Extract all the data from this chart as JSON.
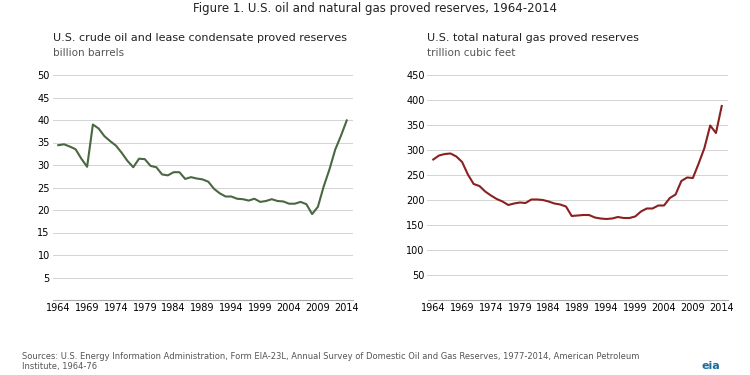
{
  "title": "Figure 1. U.S. oil and natural gas proved reserves, 1964-2014",
  "left_subtitle": "U.S. crude oil and lease condensate proved reserves",
  "left_ylabel": "billion barrels",
  "right_subtitle": "U.S. total natural gas proved reserves",
  "right_ylabel": "trillion cubic feet",
  "source_text": "Sources: U.S. Energy Information Administration, Form EIA-23L, Annual Survey of Domestic Oil and Gas Reserves, 1977-2014, American Petroleum\nInstitute, 1964-76",
  "oil_years": [
    1964,
    1965,
    1966,
    1967,
    1968,
    1969,
    1970,
    1971,
    1972,
    1973,
    1974,
    1975,
    1976,
    1977,
    1978,
    1979,
    1980,
    1981,
    1982,
    1983,
    1984,
    1985,
    1986,
    1987,
    1988,
    1989,
    1990,
    1991,
    1992,
    1993,
    1994,
    1995,
    1996,
    1997,
    1998,
    1999,
    2000,
    2001,
    2002,
    2003,
    2004,
    2005,
    2006,
    2007,
    2008,
    2009,
    2010,
    2011,
    2012,
    2013,
    2014
  ],
  "oil_values": [
    34.4,
    34.6,
    34.1,
    33.5,
    31.4,
    29.6,
    39.0,
    38.1,
    36.4,
    35.3,
    34.3,
    32.7,
    30.9,
    29.5,
    31.4,
    31.3,
    29.8,
    29.5,
    27.9,
    27.7,
    28.4,
    28.4,
    26.9,
    27.3,
    27.0,
    26.8,
    26.3,
    24.7,
    23.7,
    23.0,
    23.0,
    22.5,
    22.4,
    22.1,
    22.5,
    21.8,
    22.0,
    22.4,
    22.0,
    21.9,
    21.4,
    21.4,
    21.8,
    21.3,
    19.1,
    20.7,
    25.2,
    29.0,
    33.4,
    36.5,
    39.9
  ],
  "gas_years": [
    1964,
    1965,
    1966,
    1967,
    1968,
    1969,
    1970,
    1971,
    1972,
    1973,
    1974,
    1975,
    1976,
    1977,
    1978,
    1979,
    1980,
    1981,
    1982,
    1983,
    1984,
    1985,
    1986,
    1987,
    1988,
    1989,
    1990,
    1991,
    1992,
    1993,
    1994,
    1995,
    1996,
    1997,
    1998,
    1999,
    2000,
    2001,
    2002,
    2003,
    2004,
    2005,
    2006,
    2007,
    2008,
    2009,
    2010,
    2011,
    2012,
    2013,
    2014
  ],
  "gas_values": [
    281,
    289,
    292,
    293,
    287,
    276,
    251,
    232,
    228,
    217,
    209,
    202,
    197,
    190,
    193,
    195,
    194,
    201,
    201,
    200,
    197,
    193,
    191,
    187,
    168,
    169,
    170,
    170,
    165,
    163,
    162,
    163,
    166,
    164,
    164,
    167,
    177,
    183,
    183,
    189,
    189,
    204,
    211,
    238,
    245,
    244,
    273,
    304,
    349,
    334,
    388
  ],
  "oil_color": "#4a6741",
  "gas_color": "#8b2020",
  "left_ylim": [
    0,
    50
  ],
  "left_yticks": [
    0,
    5,
    10,
    15,
    20,
    25,
    30,
    35,
    40,
    45,
    50
  ],
  "right_ylim": [
    0,
    450
  ],
  "right_yticks": [
    0,
    50,
    100,
    150,
    200,
    250,
    300,
    350,
    400,
    450
  ],
  "xticks": [
    1964,
    1969,
    1974,
    1979,
    1984,
    1989,
    1994,
    1999,
    2004,
    2009,
    2014
  ],
  "xlim": [
    1963,
    2015
  ],
  "line_width": 1.5,
  "bg_color": "#ffffff",
  "grid_color": "#cccccc",
  "title_fontsize": 8.5,
  "subtitle_fontsize": 8,
  "ylabel_fontsize": 7.5,
  "tick_fontsize": 7,
  "source_fontsize": 6
}
